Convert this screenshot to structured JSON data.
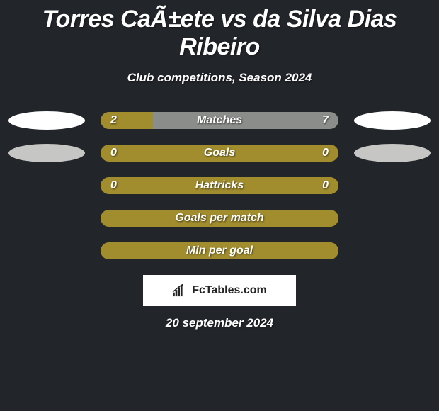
{
  "title": "Torres CaÃ±ete vs da Silva Dias Ribeiro",
  "subtitle": "Club competitions, Season 2024",
  "date": "20 september 2024",
  "brand": "FcTables.com",
  "colors": {
    "bg": "#22252a",
    "bar_fill": "#a18d2e",
    "bar_empty": "#8b8d8a",
    "oval_white": "#ffffff",
    "oval_gray": "#c6c7c4"
  },
  "rows": [
    {
      "label": "Matches",
      "left_value": "2",
      "right_value": "7",
      "left_pct": 22,
      "bar_bg": "#8b8d8a",
      "fill_color": "#a18d2e",
      "left_oval": "#ffffff",
      "right_oval": "#ffffff"
    },
    {
      "label": "Goals",
      "left_value": "0",
      "right_value": "0",
      "left_pct": 100,
      "bar_bg": "#a18d2e",
      "fill_color": "#a18d2e",
      "left_oval": "#c6c7c4",
      "right_oval": "#c6c7c4"
    },
    {
      "label": "Hattricks",
      "left_value": "0",
      "right_value": "0",
      "left_pct": 100,
      "bar_bg": "#a18d2e",
      "fill_color": "#a18d2e",
      "left_oval": null,
      "right_oval": null
    },
    {
      "label": "Goals per match",
      "left_value": "",
      "right_value": "",
      "left_pct": 100,
      "bar_bg": "#a18d2e",
      "fill_color": "#a18d2e",
      "left_oval": null,
      "right_oval": null
    },
    {
      "label": "Min per goal",
      "left_value": "",
      "right_value": "",
      "left_pct": 100,
      "bar_bg": "#a18d2e",
      "fill_color": "#a18d2e",
      "left_oval": null,
      "right_oval": null
    }
  ]
}
